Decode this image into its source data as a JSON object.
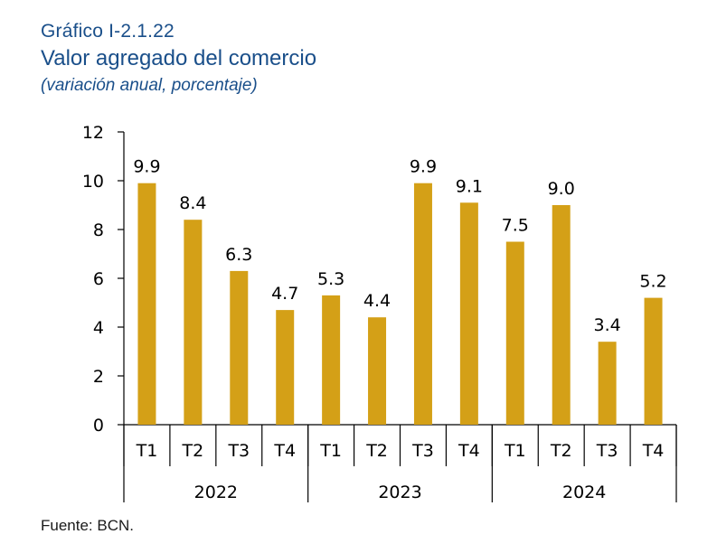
{
  "header": {
    "figure_number": "Gráfico I-2.1.22",
    "title": "Valor agregado del comercio",
    "subtitle": "(variación anual, porcentaje)"
  },
  "source": "Fuente: BCN.",
  "colors": {
    "bar": "#D4A017",
    "title": "#1a4f8a",
    "axis": "#000000"
  },
  "chart_data": {
    "type": "bar",
    "categories": [
      "T1",
      "T2",
      "T3",
      "T4",
      "T1",
      "T2",
      "T3",
      "T4",
      "T1",
      "T2",
      "T3",
      "T4"
    ],
    "groups": [
      {
        "label": "2022",
        "categories": [
          "T1",
          "T2",
          "T3",
          "T4"
        ]
      },
      {
        "label": "2023",
        "categories": [
          "T1",
          "T2",
          "T3",
          "T4"
        ]
      },
      {
        "label": "2024",
        "categories": [
          "T1",
          "T2",
          "T3",
          "T4"
        ]
      }
    ],
    "values": [
      9.9,
      8.4,
      6.3,
      4.7,
      5.3,
      4.4,
      9.9,
      9.1,
      7.5,
      9.0,
      3.4,
      5.2
    ],
    "value_labels": [
      "9.9",
      "8.4",
      "6.3",
      "4.7",
      "5.3",
      "4.4",
      "9.9",
      "9.1",
      "7.5",
      "9.0",
      "3.4",
      "5.2"
    ],
    "ylim": [
      0,
      12
    ],
    "yticks": [
      0,
      2,
      4,
      6,
      8,
      10,
      12
    ],
    "ytick_labels": [
      "0",
      "2",
      "4",
      "6",
      "8",
      "10",
      "12"
    ],
    "grid": false,
    "legend": "none"
  }
}
